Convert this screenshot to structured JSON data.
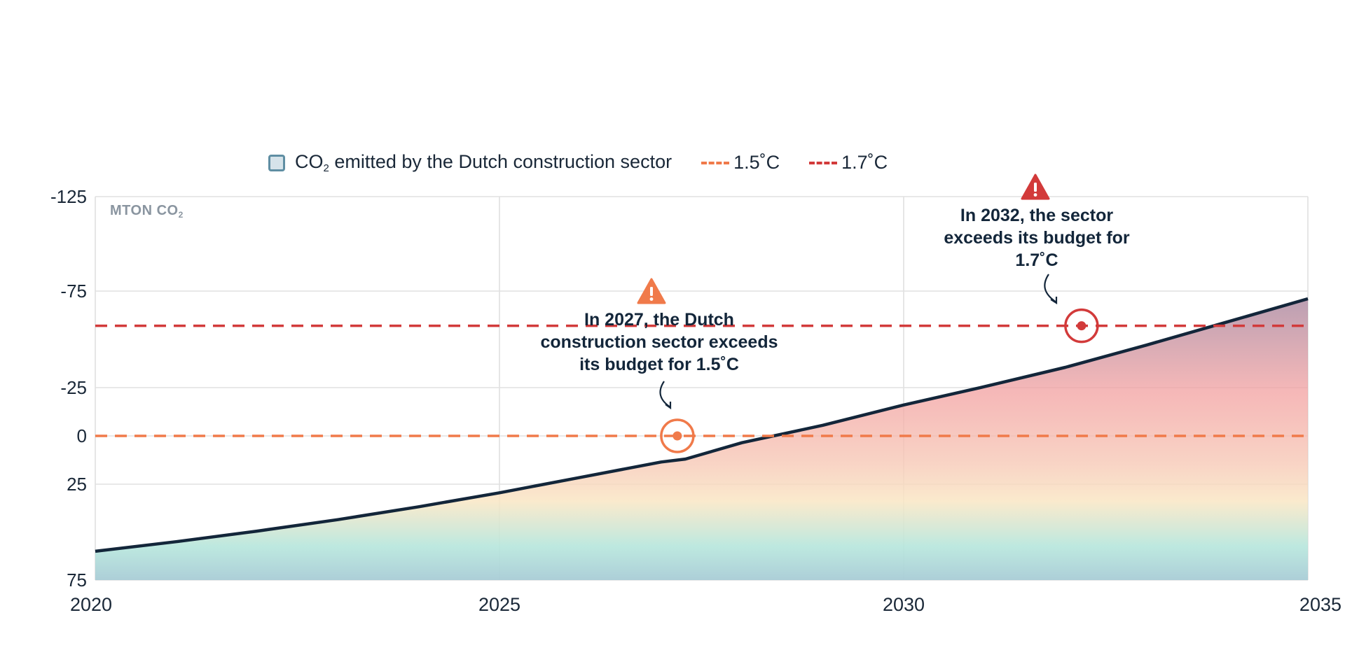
{
  "legend": {
    "series_label_prefix": "CO",
    "series_label_sub": "2",
    "series_label_suffix": " emitted by the Dutch construction sector",
    "threshold_15_label": "1.5˚C",
    "threshold_17_label": "1.7˚C"
  },
  "unit_label": {
    "prefix": "MTON CO",
    "sub": "2"
  },
  "annotations": {
    "a2027": "In 2027, the Dutch construction sector exceeds its budget for 1.5˚C",
    "a2032": "In 2032, the sector exceeds its budget for 1.7˚C"
  },
  "colors": {
    "line": "#13263a",
    "threshold_15": "#f07a4a",
    "threshold_17": "#d23a3a",
    "warning_15": "#f07a4a",
    "warning_17": "#d23a3a",
    "grid": "#e0e0e0"
  },
  "icons": [
    "warning-triangle-icon",
    "warning-triangle-icon"
  ],
  "chart_data": {
    "type": "area",
    "x": [
      2020,
      2021,
      2022,
      2023,
      2024,
      2025,
      2026,
      2027,
      2027.3,
      2028,
      2029,
      2030,
      2031,
      2032,
      2033,
      2034,
      2035
    ],
    "series": [
      {
        "name": "CO₂ emitted by the Dutch construction sector",
        "values": [
          60,
          55,
          49.5,
          43.5,
          36.8,
          29.5,
          21.5,
          13.5,
          12,
          3.5,
          -5.5,
          -16,
          -25.5,
          -35.5,
          -47,
          -59,
          -71
        ]
      }
    ],
    "thresholds": [
      {
        "name": "1.5˚C",
        "value": 0,
        "style": "dashed"
      },
      {
        "name": "1.7˚C",
        "value": -57,
        "style": "dashed"
      }
    ],
    "markers": [
      {
        "x": 2027.2,
        "y": 0,
        "threshold": "1.5˚C"
      },
      {
        "x": 2032.2,
        "y": -57,
        "threshold": "1.7˚C"
      }
    ],
    "xlim": [
      2020,
      2035
    ],
    "xticks": [
      2020,
      2025,
      2030,
      2035
    ],
    "ylim": [
      75,
      -125
    ],
    "yticks": [
      -125,
      -75,
      -25,
      0,
      25,
      75
    ],
    "ylabel": "MTON CO₂",
    "grid": true,
    "legend_position": "top"
  }
}
